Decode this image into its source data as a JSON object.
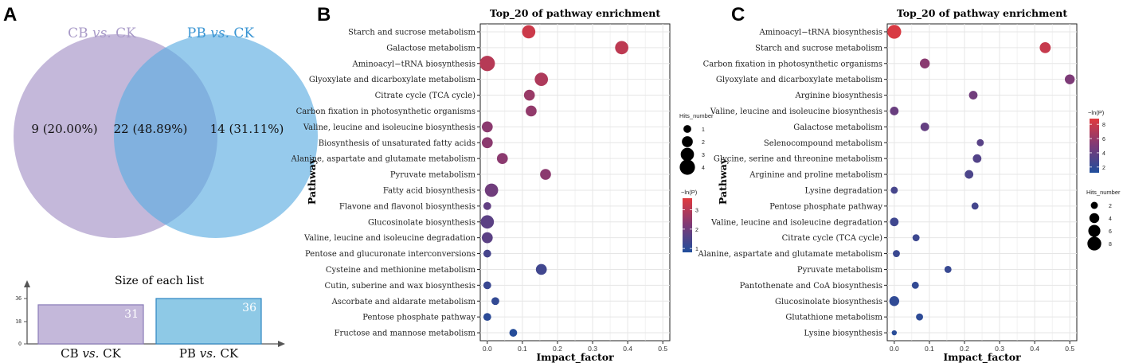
{
  "panel_labels": {
    "a": "A",
    "b": "B",
    "c": "C"
  },
  "chart_data": [
    {
      "type": "venn",
      "sets": [
        {
          "name_main": "CB",
          "name_vs": "vs.",
          "name_rest": "CK",
          "color": "#c4b8da",
          "label_color": "#a99bc8"
        },
        {
          "name_main": "PB",
          "name_vs": "vs.",
          "name_rest": "CK",
          "color": "#5dade2",
          "label_color": "#3a95d3"
        }
      ],
      "regions": [
        {
          "region": "CB only",
          "text": "9 (20.00%)",
          "count": 9
        },
        {
          "region": "overlap",
          "text": "22 (48.89%)",
          "count": 22
        },
        {
          "region": "PB only",
          "text": "14 (31.11%)",
          "count": 14
        }
      ]
    },
    {
      "type": "bar",
      "title": "Size of each list",
      "yticks": [
        "0",
        "18",
        "36"
      ],
      "ylim": [
        0,
        36
      ],
      "bars": [
        {
          "main": "CB",
          "vs": "vs.",
          "rest": "CK",
          "value": 31,
          "label": "31",
          "fill": "#c4b8da",
          "stroke": "#8a7cb8"
        },
        {
          "main": "PB",
          "vs": "vs.",
          "rest": "CK",
          "value": 36,
          "label": "36",
          "fill": "#8ec9e6",
          "stroke": "#2e86c1"
        }
      ]
    },
    {
      "type": "scatter",
      "title": "Top_20 of pathway enrichment",
      "xlabel": "Impact_factor",
      "ylabel": "Pathway",
      "xlim": [
        -0.02,
        0.52
      ],
      "xticks": [
        "0.0",
        "0.1",
        "0.2",
        "0.3",
        "0.4",
        "0.5"
      ],
      "size_legend": {
        "title": "Hits_number",
        "values": [
          "1",
          "2",
          "3",
          "4"
        ]
      },
      "color_legend": {
        "title": "−ln(P)",
        "ticks": [
          "1",
          "2",
          "3"
        ],
        "min": 0.8,
        "max": 3.6
      },
      "points": [
        {
          "pathway": "Starch and sucrose metabolism",
          "x": 0.118,
          "hits": 3,
          "neglogp": 3.3
        },
        {
          "pathway": "Galactose metabolism",
          "x": 0.383,
          "hits": 3,
          "neglogp": 3.1
        },
        {
          "pathway": "Aminoacyl−tRNA biosynthesis",
          "x": 0.0,
          "hits": 4,
          "neglogp": 3.0
        },
        {
          "pathway": "Glyoxylate and dicarboxylate metabolism",
          "x": 0.154,
          "hits": 3,
          "neglogp": 2.9
        },
        {
          "pathway": "Citrate cycle (TCA cycle)",
          "x": 0.12,
          "hits": 2,
          "neglogp": 2.6
        },
        {
          "pathway": "Carbon fixation in photosynthetic organisms",
          "x": 0.125,
          "hits": 2,
          "neglogp": 2.5
        },
        {
          "pathway": "Valine, leucine and isoleucine biosynthesis",
          "x": 0.0,
          "hits": 2,
          "neglogp": 2.4
        },
        {
          "pathway": "Biosynthesis of unsaturated fatty acids",
          "x": 0.0,
          "hits": 2,
          "neglogp": 2.4
        },
        {
          "pathway": "Alanine, aspartate and glutamate metabolism",
          "x": 0.043,
          "hits": 2,
          "neglogp": 2.4
        },
        {
          "pathway": "Pyruvate metabolism",
          "x": 0.166,
          "hits": 2,
          "neglogp": 2.4
        },
        {
          "pathway": "Fatty acid biosynthesis",
          "x": 0.012,
          "hits": 3,
          "neglogp": 2.0
        },
        {
          "pathway": "Flavone and flavonol biosynthesis",
          "x": 0.0,
          "hits": 1,
          "neglogp": 1.8
        },
        {
          "pathway": "Glucosinolate biosynthesis",
          "x": 0.0,
          "hits": 3,
          "neglogp": 1.7
        },
        {
          "pathway": "Valine, leucine and isoleucine degradation",
          "x": 0.0,
          "hits": 2,
          "neglogp": 1.7
        },
        {
          "pathway": "Pentose and glucuronate interconversions",
          "x": 0.0,
          "hits": 1,
          "neglogp": 1.4
        },
        {
          "pathway": "Cysteine and methionine metabolism",
          "x": 0.154,
          "hits": 2,
          "neglogp": 1.3
        },
        {
          "pathway": "Cutin, suberine and wax biosynthesis",
          "x": 0.0,
          "hits": 1,
          "neglogp": 1.2
        },
        {
          "pathway": "Ascorbate and aldarate metabolism",
          "x": 0.023,
          "hits": 1,
          "neglogp": 1.1
        },
        {
          "pathway": "Pentose phosphate pathway",
          "x": 0.0,
          "hits": 1,
          "neglogp": 1.0
        },
        {
          "pathway": "Fructose and mannose metabolism",
          "x": 0.074,
          "hits": 1,
          "neglogp": 0.9
        }
      ]
    },
    {
      "type": "scatter",
      "title": "Top_20 of pathway enrichment",
      "xlabel": "Impact_factor",
      "ylabel": "Pathway",
      "xlim": [
        -0.02,
        0.52
      ],
      "xticks": [
        "0.0",
        "0.1",
        "0.2",
        "0.3",
        "0.4",
        "0.5"
      ],
      "size_legend": {
        "title": "Hits_number",
        "values": [
          "2",
          "4",
          "6",
          "8"
        ]
      },
      "color_legend": {
        "title": "−ln(P)",
        "ticks": [
          "2",
          "4",
          "6",
          "8"
        ],
        "min": 1.2,
        "max": 8.8
      },
      "points": [
        {
          "pathway": "Aminoacyl−tRNA biosynthesis",
          "x": 0.0,
          "hits": 8,
          "neglogp": 8.5
        },
        {
          "pathway": "Starch and sucrose metabolism",
          "x": 0.43,
          "hits": 5,
          "neglogp": 7.8
        },
        {
          "pathway": "Carbon fixation in photosynthetic organisms",
          "x": 0.087,
          "hits": 4,
          "neglogp": 5.5
        },
        {
          "pathway": "Glyoxylate and dicarboxylate metabolism",
          "x": 0.5,
          "hits": 4,
          "neglogp": 5.0
        },
        {
          "pathway": "Arginine biosynthesis",
          "x": 0.225,
          "hits": 3,
          "neglogp": 4.5
        },
        {
          "pathway": "Valine, leucine and isoleucine biosynthesis",
          "x": 0.0,
          "hits": 3,
          "neglogp": 4.2
        },
        {
          "pathway": "Galactose metabolism",
          "x": 0.087,
          "hits": 3,
          "neglogp": 4.0
        },
        {
          "pathway": "Selenocompound metabolism",
          "x": 0.245,
          "hits": 2,
          "neglogp": 3.5
        },
        {
          "pathway": "Glycine, serine and threonine metabolism",
          "x": 0.236,
          "hits": 3,
          "neglogp": 3.3
        },
        {
          "pathway": "Arginine and proline metabolism",
          "x": 0.213,
          "hits": 3,
          "neglogp": 3.0
        },
        {
          "pathway": "Lysine degradation",
          "x": 0.0,
          "hits": 2,
          "neglogp": 2.8
        },
        {
          "pathway": "Pentose phosphate pathway",
          "x": 0.23,
          "hits": 2,
          "neglogp": 2.7
        },
        {
          "pathway": "Valine, leucine and isoleucine degradation",
          "x": 0.0,
          "hits": 3,
          "neglogp": 2.5
        },
        {
          "pathway": "Citrate cycle (TCA cycle)",
          "x": 0.062,
          "hits": 2,
          "neglogp": 2.4
        },
        {
          "pathway": "Alanine, aspartate and glutamate metabolism",
          "x": 0.006,
          "hits": 2,
          "neglogp": 2.3
        },
        {
          "pathway": "Pyruvate metabolism",
          "x": 0.153,
          "hits": 2,
          "neglogp": 2.2
        },
        {
          "pathway": "Pantothenate and CoA biosynthesis",
          "x": 0.06,
          "hits": 2,
          "neglogp": 2.0
        },
        {
          "pathway": "Glucosinolate biosynthesis",
          "x": 0.0,
          "hits": 4,
          "neglogp": 1.9
        },
        {
          "pathway": "Glutathione metabolism",
          "x": 0.072,
          "hits": 2,
          "neglogp": 1.8
        },
        {
          "pathway": "Lysine biosynthesis",
          "x": 0.0,
          "hits": 1,
          "neglogp": 1.6
        }
      ]
    }
  ]
}
